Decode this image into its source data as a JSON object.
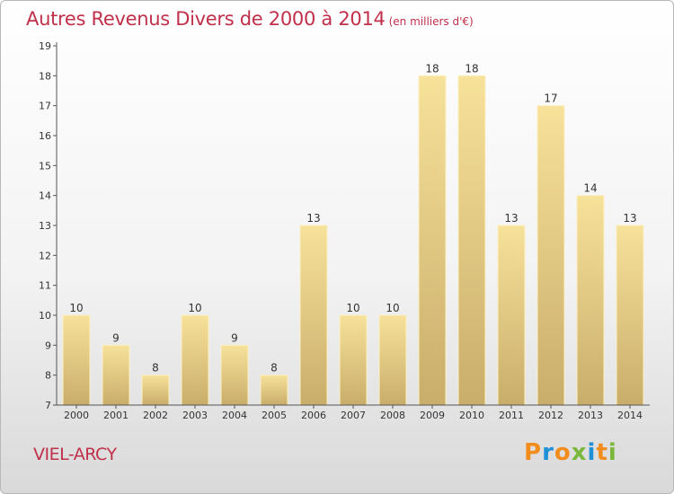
{
  "header": {
    "title": "Autres Revenus Divers de 2000 à 2014",
    "subtitle": "(en milliers d'€)"
  },
  "footer": {
    "town": "VIEL-ARCY",
    "logo": "Proxiti"
  },
  "colors": {
    "title": "#c0304a",
    "bar_light": "#f7e29a",
    "bar_dark": "#c9ad6a",
    "logo_letters": [
      "#f28c1c",
      "#1f8fd6",
      "#f28c1c",
      "#7ab83c",
      "#1f8fd6",
      "#f28c1c",
      "#7ab83c"
    ]
  },
  "chart_data": {
    "type": "bar",
    "title": "Autres Revenus Divers de 2000 à 2014",
    "subtitle": "(en milliers d'€)",
    "xlabel": "",
    "ylabel": "",
    "categories": [
      "2000",
      "2001",
      "2002",
      "2003",
      "2004",
      "2005",
      "2006",
      "2007",
      "2008",
      "2009",
      "2010",
      "2011",
      "2012",
      "2013",
      "2014"
    ],
    "values": [
      10,
      9,
      8,
      10,
      9,
      8,
      13,
      10,
      10,
      18,
      18,
      13,
      17,
      14,
      13
    ],
    "ylim": [
      7,
      19
    ],
    "yticks": [
      7,
      8,
      9,
      10,
      11,
      12,
      13,
      14,
      15,
      16,
      17,
      18,
      19
    ],
    "grid": false,
    "legend": "none"
  }
}
